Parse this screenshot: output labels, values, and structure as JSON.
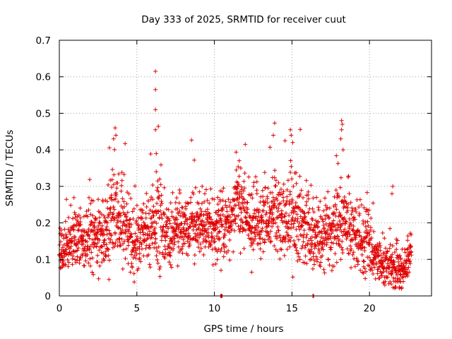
{
  "chart_data": {
    "type": "scatter",
    "title": "Day 333 of 2025, SRMTID for receiver cuut",
    "xlabel": "GPS time / hours",
    "ylabel": "SRMTID / TECUs",
    "xlim": [
      0,
      24
    ],
    "ylim": [
      0,
      0.7
    ],
    "xticks": [
      0,
      5,
      10,
      15,
      20
    ],
    "xtick_labels": [
      "0",
      "5",
      "10",
      "15",
      "20"
    ],
    "yticks": [
      0,
      0.1,
      0.2,
      0.3,
      0.4,
      0.5,
      0.6,
      0.7
    ],
    "ytick_labels": [
      "0",
      "0.1",
      "0.2",
      "0.3",
      "0.4",
      "0.5",
      "0.6",
      "0.7"
    ],
    "grid": true,
    "marker": "+",
    "series": [
      {
        "name": "SRMTID",
        "color": "#e00000",
        "envelope": {
          "description": "Dense scatter of ~2000 points; per-hour typical level (y_mid) and spread, read from the plot.",
          "x": [
            0,
            1,
            2,
            3,
            3.5,
            4,
            5,
            6,
            6.3,
            7,
            8,
            9,
            10,
            11,
            11.5,
            12,
            13,
            14,
            15,
            16,
            17,
            18,
            18.3,
            19,
            20,
            21,
            21.5,
            22,
            22.7
          ],
          "y_mid": [
            0.12,
            0.15,
            0.16,
            0.17,
            0.22,
            0.2,
            0.16,
            0.19,
            0.22,
            0.15,
            0.19,
            0.18,
            0.18,
            0.19,
            0.27,
            0.2,
            0.2,
            0.22,
            0.21,
            0.18,
            0.15,
            0.2,
            0.22,
            0.16,
            0.13,
            0.08,
            0.08,
            0.06,
            0.13
          ],
          "y_spread": [
            0.04,
            0.05,
            0.05,
            0.06,
            0.09,
            0.07,
            0.06,
            0.06,
            0.08,
            0.06,
            0.05,
            0.05,
            0.06,
            0.06,
            0.07,
            0.06,
            0.06,
            0.07,
            0.08,
            0.06,
            0.06,
            0.07,
            0.08,
            0.06,
            0.05,
            0.04,
            0.05,
            0.03,
            0.05
          ]
        },
        "highlights": [
          {
            "x": 3.6,
            "y": 0.46
          },
          {
            "x": 3.65,
            "y": 0.44
          },
          {
            "x": 3.5,
            "y": 0.43
          },
          {
            "x": 6.2,
            "y": 0.615
          },
          {
            "x": 6.2,
            "y": 0.565
          },
          {
            "x": 6.2,
            "y": 0.51
          },
          {
            "x": 6.2,
            "y": 0.455
          },
          {
            "x": 6.25,
            "y": 0.39
          },
          {
            "x": 6.25,
            "y": 0.34
          },
          {
            "x": 14.9,
            "y": 0.455
          },
          {
            "x": 14.95,
            "y": 0.44
          },
          {
            "x": 15.05,
            "y": 0.42
          },
          {
            "x": 13.8,
            "y": 0.44
          },
          {
            "x": 18.2,
            "y": 0.48
          },
          {
            "x": 18.25,
            "y": 0.47
          },
          {
            "x": 18.2,
            "y": 0.455
          },
          {
            "x": 18.15,
            "y": 0.43
          },
          {
            "x": 18.3,
            "y": 0.4
          },
          {
            "x": 11.6,
            "y": 0.37
          },
          {
            "x": 11.7,
            "y": 0.35
          },
          {
            "x": 21.5,
            "y": 0.3
          },
          {
            "x": 21.45,
            "y": 0.28
          },
          {
            "x": 3.2,
            "y": 0.045
          },
          {
            "x": 12.4,
            "y": 0.065
          },
          {
            "x": 22.0,
            "y": 0.04
          },
          {
            "x": 20.9,
            "y": 0.035
          },
          {
            "x": 10.4,
            "y": 0.0
          },
          {
            "x": 10.45,
            "y": 0.0
          },
          {
            "x": 10.5,
            "y": 0.0
          },
          {
            "x": 16.35,
            "y": 0.0
          },
          {
            "x": 16.4,
            "y": 0.0
          }
        ]
      }
    ]
  }
}
